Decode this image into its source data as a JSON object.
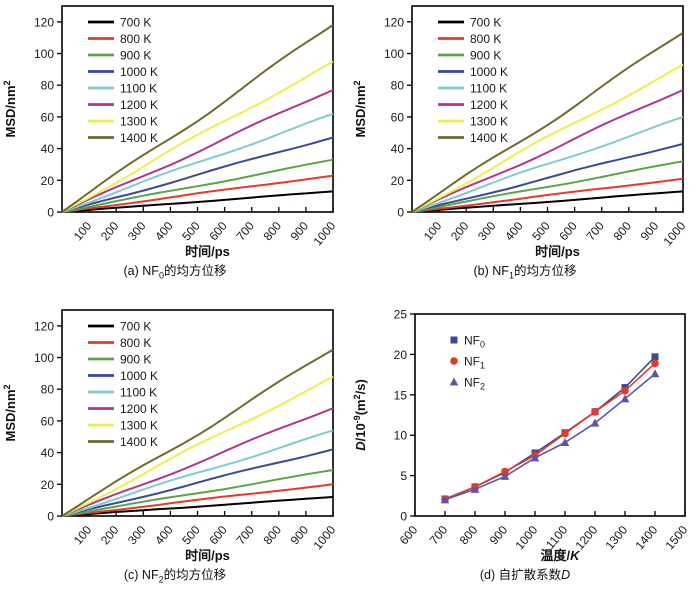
{
  "figure": {
    "panels": {
      "a": {
        "caption": {
          "pre": "(a) NF",
          "sub": "0",
          "post": "的均方位移"
        }
      },
      "b": {
        "caption": {
          "pre": "(b) NF",
          "sub": "1",
          "post": "的均方位移"
        }
      },
      "c": {
        "caption": {
          "pre": "(c) NF",
          "sub": "2",
          "post": "的均方位移"
        }
      },
      "d": {
        "caption": {
          "pre": "(d) 自扩散系数",
          "italic": "D"
        }
      }
    }
  },
  "chart_data": [
    {
      "id": "a",
      "type": "line",
      "title": "(a) NF0的均方位移",
      "xlabel": "时间/ps",
      "ylabel": "MSD/nm2",
      "xlabel_parts": [
        {
          "t": "时间/ps"
        }
      ],
      "ylabel_parts": [
        {
          "t": "MSD/nm"
        },
        {
          "t": "2",
          "sup": true
        }
      ],
      "xlim": [
        0,
        1000
      ],
      "ylim": [
        0,
        130
      ],
      "xticks": [
        100,
        200,
        300,
        400,
        500,
        600,
        700,
        800,
        900,
        1000
      ],
      "yticks": [
        0,
        20,
        40,
        60,
        80,
        100,
        120
      ],
      "grid": false,
      "legend_position": "top-left",
      "x": [
        0,
        1000
      ],
      "series": [
        {
          "name": "700 K",
          "color": "#000000",
          "values": [
            0,
            13
          ]
        },
        {
          "name": "800 K",
          "color": "#e23b2e",
          "values": [
            0,
            23
          ]
        },
        {
          "name": "900 K",
          "color": "#57a646",
          "values": [
            0,
            33
          ]
        },
        {
          "name": "1000 K",
          "color": "#3c4a98",
          "values": [
            0,
            47
          ]
        },
        {
          "name": "1100 K",
          "color": "#7fccca",
          "values": [
            0,
            62
          ]
        },
        {
          "name": "1200 K",
          "color": "#b23590",
          "values": [
            0,
            77
          ]
        },
        {
          "name": "1300 K",
          "color": "#eeee4d",
          "values": [
            0,
            95
          ]
        },
        {
          "name": "1400 K",
          "color": "#6f6b2e",
          "values": [
            0,
            118
          ]
        }
      ]
    },
    {
      "id": "b",
      "type": "line",
      "title": "(b) NF1的均方位移",
      "xlabel": "时间/ps",
      "ylabel": "MSD/nm2",
      "xlabel_parts": [
        {
          "t": "时间/ps"
        }
      ],
      "ylabel_parts": [
        {
          "t": "MSD/nm"
        },
        {
          "t": "2",
          "sup": true
        }
      ],
      "xlim": [
        0,
        1000
      ],
      "ylim": [
        0,
        130
      ],
      "xticks": [
        100,
        200,
        300,
        400,
        500,
        600,
        700,
        800,
        900,
        1000
      ],
      "yticks": [
        0,
        20,
        40,
        60,
        80,
        100,
        120
      ],
      "grid": false,
      "legend_position": "top-left",
      "x": [
        0,
        1000
      ],
      "series": [
        {
          "name": "700 K",
          "color": "#000000",
          "values": [
            0,
            13
          ]
        },
        {
          "name": "800 K",
          "color": "#e23b2e",
          "values": [
            0,
            21
          ]
        },
        {
          "name": "900 K",
          "color": "#57a646",
          "values": [
            0,
            32
          ]
        },
        {
          "name": "1000 K",
          "color": "#3c4a98",
          "values": [
            0,
            43
          ]
        },
        {
          "name": "1100 K",
          "color": "#7fccca",
          "values": [
            0,
            60
          ]
        },
        {
          "name": "1200 K",
          "color": "#b23590",
          "values": [
            0,
            77
          ]
        },
        {
          "name": "1300 K",
          "color": "#eeee4d",
          "values": [
            0,
            93
          ]
        },
        {
          "name": "1400 K",
          "color": "#6f6b2e",
          "values": [
            0,
            113
          ]
        }
      ]
    },
    {
      "id": "c",
      "type": "line",
      "title": "(c) NF2的均方位移",
      "xlabel": "时间/ps",
      "ylabel": "MSD/nm2",
      "xlabel_parts": [
        {
          "t": "时间/ps"
        }
      ],
      "ylabel_parts": [
        {
          "t": "MSD/nm"
        },
        {
          "t": "2",
          "sup": true
        }
      ],
      "xlim": [
        0,
        1000
      ],
      "ylim": [
        0,
        130
      ],
      "xticks": [
        100,
        200,
        300,
        400,
        500,
        600,
        700,
        800,
        900,
        1000
      ],
      "yticks": [
        0,
        20,
        40,
        60,
        80,
        100,
        120
      ],
      "grid": false,
      "legend_position": "top-left",
      "x": [
        0,
        1000
      ],
      "series": [
        {
          "name": "700 K",
          "color": "#000000",
          "values": [
            0,
            12
          ]
        },
        {
          "name": "800 K",
          "color": "#e23b2e",
          "values": [
            0,
            20
          ]
        },
        {
          "name": "900 K",
          "color": "#57a646",
          "values": [
            0,
            29
          ]
        },
        {
          "name": "1000 K",
          "color": "#3c4a98",
          "values": [
            0,
            42
          ]
        },
        {
          "name": "1100 K",
          "color": "#7fccca",
          "values": [
            0,
            54
          ]
        },
        {
          "name": "1200 K",
          "color": "#b23590",
          "values": [
            0,
            68
          ]
        },
        {
          "name": "1300 K",
          "color": "#eeee4d",
          "values": [
            0,
            88
          ]
        },
        {
          "name": "1400 K",
          "color": "#6f6b2e",
          "values": [
            0,
            105
          ]
        }
      ]
    },
    {
      "id": "d",
      "type": "scatter",
      "title": "(d) 自扩散系数D",
      "xlabel": "温度/K",
      "ylabel": "D/10-9(m2/s)",
      "xlabel_parts": [
        {
          "t": "温度/"
        },
        {
          "t": "K",
          "italic": true
        }
      ],
      "ylabel_parts": [
        {
          "t": "D",
          "italic": true
        },
        {
          "t": "/10"
        },
        {
          "t": "-9",
          "sup": true
        },
        {
          "t": "(m"
        },
        {
          "t": "2",
          "sup": true
        },
        {
          "t": "/s)"
        }
      ],
      "xlim": [
        600,
        1500
      ],
      "ylim": [
        0,
        25
      ],
      "xticks": [
        600,
        700,
        800,
        900,
        1000,
        1100,
        1200,
        1300,
        1400,
        1500
      ],
      "yticks": [
        0,
        5,
        10,
        15,
        20,
        25
      ],
      "grid": false,
      "legend_position": "top-left",
      "x": [
        700,
        800,
        900,
        1000,
        1100,
        1200,
        1300,
        1400
      ],
      "series": [
        {
          "name": "NF0",
          "label_pre": "NF",
          "label_sub": "0",
          "color": "#3c4a98",
          "marker": "square",
          "values": [
            2.1,
            3.6,
            5.4,
            7.8,
            10.3,
            12.9,
            15.9,
            19.7
          ]
        },
        {
          "name": "NF1",
          "label_pre": "NF",
          "label_sub": "1",
          "color": "#e23b2e",
          "marker": "circle",
          "values": [
            2.1,
            3.6,
            5.5,
            7.5,
            10.2,
            12.9,
            15.5,
            18.9
          ]
        },
        {
          "name": "NF2",
          "label_pre": "NF",
          "label_sub": "2",
          "color": "#5e56a4",
          "marker": "triangle",
          "values": [
            2.0,
            3.3,
            4.9,
            7.2,
            9.1,
            11.5,
            14.5,
            17.6
          ]
        }
      ]
    }
  ]
}
